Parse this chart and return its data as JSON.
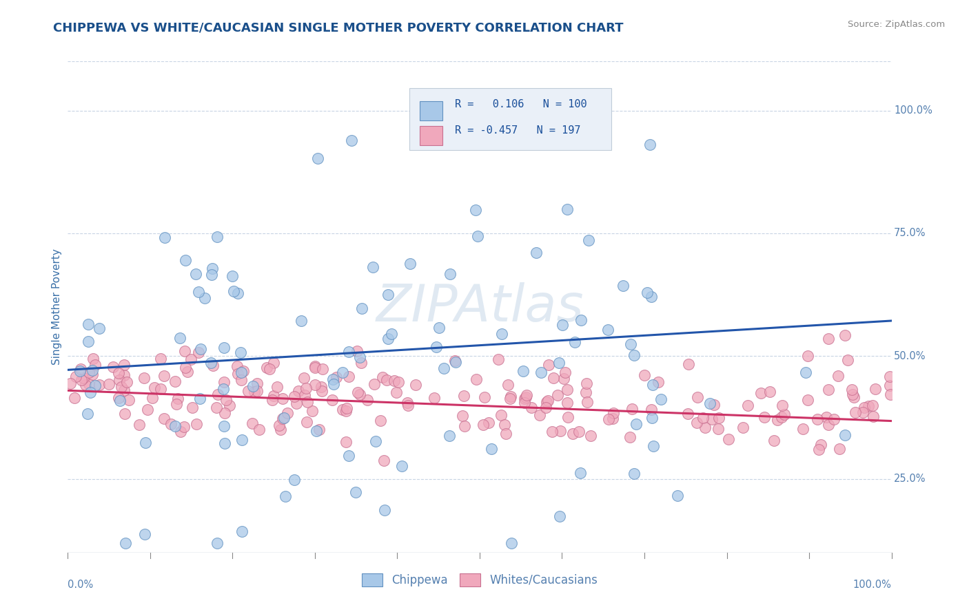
{
  "title": "CHIPPEWA VS WHITE/CAUCASIAN SINGLE MOTHER POVERTY CORRELATION CHART",
  "source": "Source: ZipAtlas.com",
  "ylabel": "Single Mother Poverty",
  "ytick_labels": [
    "25.0%",
    "50.0%",
    "75.0%",
    "100.0%"
  ],
  "ytick_values": [
    0.25,
    0.5,
    0.75,
    1.0
  ],
  "xlim": [
    0.0,
    1.0
  ],
  "ylim": [
    0.1,
    1.1
  ],
  "chippewa_color": "#a8c8e8",
  "chippewa_edge": "#6090c0",
  "white_color": "#f0a8bc",
  "white_edge": "#c87090",
  "blue_line_color": "#2255aa",
  "pink_line_color": "#cc3366",
  "watermark": "ZIPAtlas",
  "watermark_color": "#c8d8e8",
  "background_color": "#ffffff",
  "grid_color": "#c8d4e4",
  "title_color": "#1a4f8a",
  "axis_label_color": "#3a70a8",
  "tick_color": "#5580b0",
  "source_color": "#888888",
  "legend_bg_color": "#eaf0f8",
  "legend_border_color": "#c0ccd8",
  "legend_text_color": "#1a4f9a",
  "blue_r": 0.106,
  "blue_n": 100,
  "pink_r": -0.457,
  "pink_n": 197,
  "blue_line_start_y": 0.472,
  "blue_line_end_y": 0.572,
  "pink_line_start_y": 0.43,
  "pink_line_end_y": 0.368,
  "bottom_legend_labels": [
    "Chippewa",
    "Whites/Caucasians"
  ],
  "xtick_positions": [
    0.0,
    0.1,
    0.2,
    0.3,
    0.4,
    0.5,
    0.6,
    0.7,
    0.8,
    0.9,
    1.0
  ]
}
